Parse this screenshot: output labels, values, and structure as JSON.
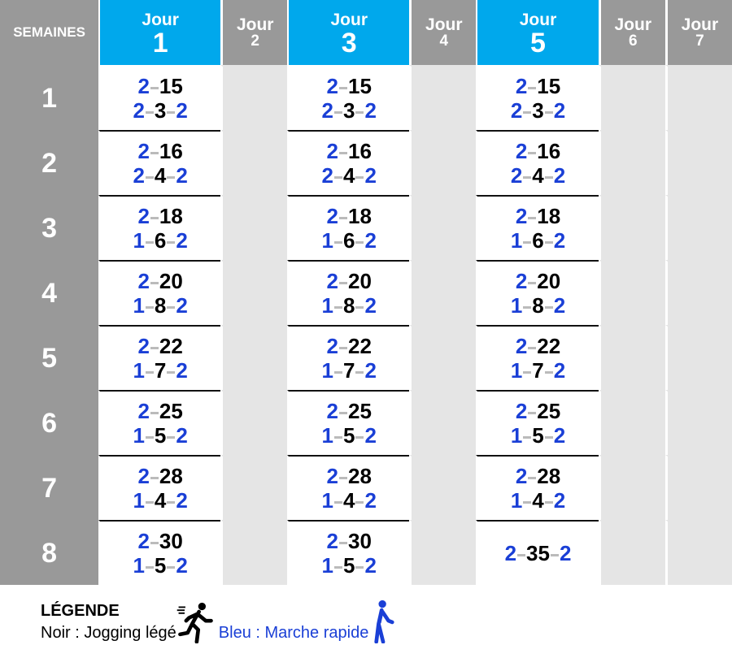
{
  "header": {
    "weeks_label": "SEMAINES",
    "day_word": "Jour",
    "days": [
      {
        "n": "1",
        "active": true
      },
      {
        "n": "2",
        "active": false
      },
      {
        "n": "3",
        "active": true
      },
      {
        "n": "4",
        "active": false
      },
      {
        "n": "5",
        "active": true
      },
      {
        "n": "6",
        "active": false
      },
      {
        "n": "7",
        "active": false
      }
    ]
  },
  "rows": [
    {
      "week": "1",
      "cells": [
        [
          "2-15",
          "2-3-2"
        ],
        [
          "2-15",
          "2-3-2"
        ],
        [
          "2-15",
          "2-3-2"
        ]
      ]
    },
    {
      "week": "2",
      "cells": [
        [
          "2-16",
          "2-4-2"
        ],
        [
          "2-16",
          "2-4-2"
        ],
        [
          "2-16",
          "2-4-2"
        ]
      ]
    },
    {
      "week": "3",
      "cells": [
        [
          "2-18",
          "1-6-2"
        ],
        [
          "2-18",
          "1-6-2"
        ],
        [
          "2-18",
          "1-6-2"
        ]
      ]
    },
    {
      "week": "4",
      "cells": [
        [
          "2-20",
          "1-8-2"
        ],
        [
          "2-20",
          "1-8-2"
        ],
        [
          "2-20",
          "1-8-2"
        ]
      ]
    },
    {
      "week": "5",
      "cells": [
        [
          "2-22",
          "1-7-2"
        ],
        [
          "2-22",
          "1-7-2"
        ],
        [
          "2-22",
          "1-7-2"
        ]
      ]
    },
    {
      "week": "6",
      "cells": [
        [
          "2-25",
          "1-5-2"
        ],
        [
          "2-25",
          "1-5-2"
        ],
        [
          "2-25",
          "1-5-2"
        ]
      ]
    },
    {
      "week": "7",
      "cells": [
        [
          "2-28",
          "1-4-2"
        ],
        [
          "2-28",
          "1-4-2"
        ],
        [
          "2-28",
          "1-4-2"
        ]
      ]
    },
    {
      "week": "8",
      "cells": [
        [
          "2-30",
          "1-5-2"
        ],
        [
          "2-30",
          "1-5-2"
        ],
        [
          "2-35-2"
        ]
      ]
    }
  ],
  "legend": {
    "title": "LÉGENDE",
    "black": "Noir : Jogging légé",
    "blue": "Bleu : Marche rapide",
    "black_icon": "running-person-icon",
    "blue_icon": "walking-person-icon"
  },
  "colors": {
    "header_active": "#00a8ec",
    "header_rest": "#999999",
    "off_cell": "#e5e5e5",
    "walk_blue": "#1a3fd6",
    "jog_black": "#000000"
  }
}
